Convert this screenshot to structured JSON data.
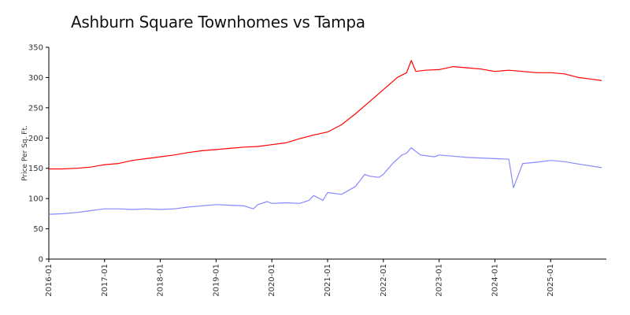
{
  "chart_data": {
    "type": "line",
    "title": "Ashburn Square Townhomes vs Tampa",
    "xlabel": "",
    "ylabel": "Price Per Sq. Ft.",
    "ylim": [
      0,
      350
    ],
    "yticks": [
      0,
      50,
      100,
      150,
      200,
      250,
      300,
      350
    ],
    "xticks": [
      "2016-01",
      "2017-01",
      "2018-01",
      "2019-01",
      "2020-01",
      "2021-01",
      "2022-01",
      "2023-01",
      "2024-01",
      "2025-01"
    ],
    "grid": false,
    "legend": "none",
    "series": [
      {
        "color": "#ff0000",
        "x": [
          "2016-01",
          "2016-04",
          "2016-07",
          "2016-10",
          "2017-01",
          "2017-04",
          "2017-07",
          "2017-10",
          "2018-01",
          "2018-04",
          "2018-07",
          "2018-10",
          "2019-01",
          "2019-04",
          "2019-07",
          "2019-10",
          "2020-01",
          "2020-04",
          "2020-07",
          "2020-10",
          "2021-01",
          "2021-04",
          "2021-07",
          "2021-10",
          "2022-01",
          "2022-04",
          "2022-06",
          "2022-07",
          "2022-08",
          "2022-10",
          "2023-01",
          "2023-04",
          "2023-07",
          "2023-10",
          "2024-01",
          "2024-04",
          "2024-07",
          "2024-10",
          "2025-01",
          "2025-04",
          "2025-07",
          "2025-10",
          "2025-12"
        ],
        "values": [
          149,
          149,
          150,
          152,
          156,
          158,
          163,
          166,
          169,
          172,
          176,
          179,
          181,
          183,
          185,
          186,
          189,
          192,
          199,
          205,
          210,
          222,
          240,
          260,
          280,
          300,
          308,
          328,
          310,
          312,
          313,
          318,
          316,
          314,
          310,
          312,
          310,
          308,
          308,
          306,
          300,
          297,
          295
        ]
      },
      {
        "color": "#8888ff",
        "x": [
          "2016-01",
          "2016-04",
          "2016-07",
          "2016-10",
          "2017-01",
          "2017-04",
          "2017-07",
          "2017-10",
          "2018-01",
          "2018-04",
          "2018-07",
          "2018-10",
          "2019-01",
          "2019-04",
          "2019-07",
          "2019-09",
          "2019-10",
          "2019-12",
          "2020-01",
          "2020-04",
          "2020-07",
          "2020-09",
          "2020-10",
          "2020-12",
          "2021-01",
          "2021-04",
          "2021-07",
          "2021-09",
          "2021-10",
          "2021-12",
          "2022-01",
          "2022-03",
          "2022-05",
          "2022-06",
          "2022-07",
          "2022-09",
          "2022-12",
          "2023-01",
          "2023-04",
          "2023-07",
          "2023-10",
          "2024-01",
          "2024-04",
          "2024-05",
          "2024-07",
          "2024-10",
          "2025-01",
          "2025-04",
          "2025-07",
          "2025-12"
        ],
        "values": [
          74,
          75,
          77,
          80,
          83,
          83,
          82,
          83,
          82,
          83,
          86,
          88,
          90,
          89,
          88,
          83,
          90,
          95,
          92,
          93,
          92,
          97,
          105,
          97,
          110,
          107,
          120,
          140,
          137,
          135,
          140,
          158,
          172,
          175,
          184,
          172,
          169,
          172,
          170,
          168,
          167,
          166,
          165,
          118,
          158,
          160,
          163,
          161,
          157,
          151
        ]
      }
    ]
  }
}
